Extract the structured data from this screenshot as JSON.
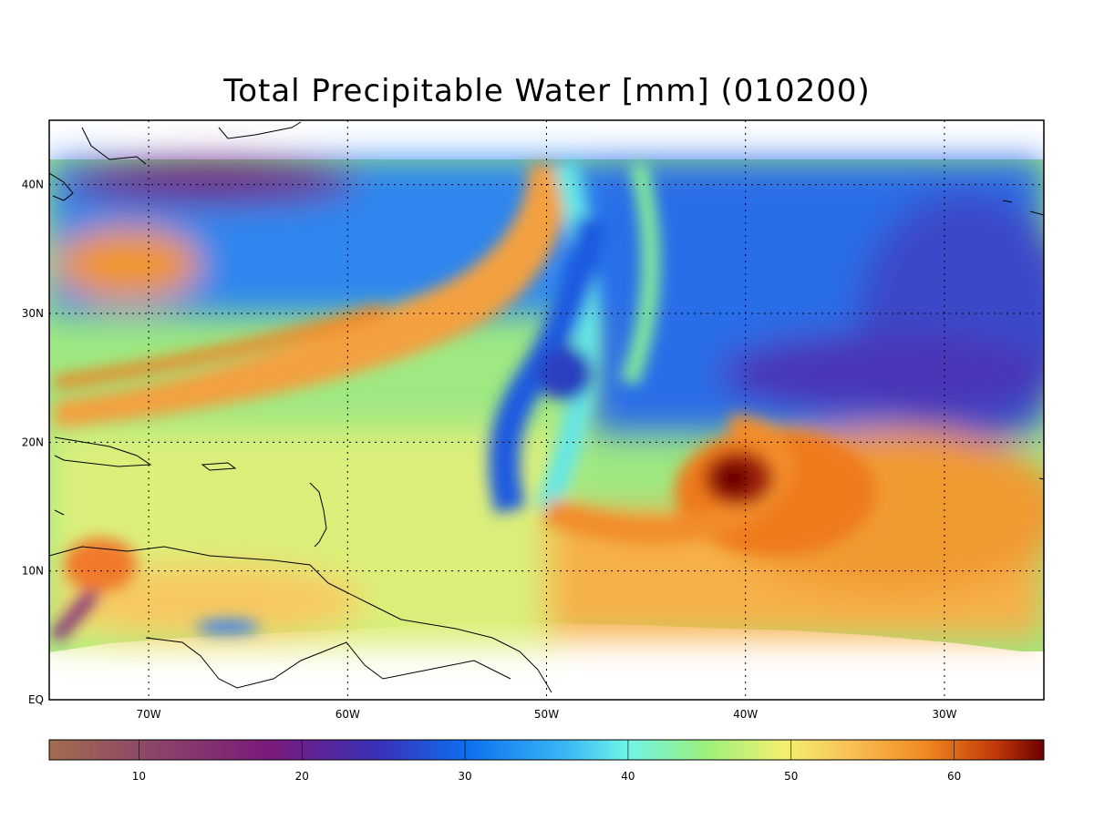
{
  "title": "Total Precipitable Water [mm]  (010200)",
  "map": {
    "lon_range": [
      -75,
      -25
    ],
    "lat_range": [
      0,
      45
    ],
    "lat_labels": [
      "EQ",
      "10N",
      "20N",
      "30N",
      "40N"
    ],
    "lon_labels": [
      "70W",
      "60W",
      "50W",
      "40W",
      "30W"
    ],
    "grid": true,
    "features": [
      "hurricane-vortex",
      "moisture-plume",
      "dry-intrusion",
      "caribbean-islands",
      "south-american-coast"
    ]
  },
  "colorbar": {
    "range": [
      4.5,
      65.5
    ],
    "ticks": [
      "10",
      "20",
      "30",
      "40",
      "50",
      "60"
    ],
    "colors": [
      "#a26d4c",
      "#7a206e",
      "#3b2fb0",
      "#0e7ee6",
      "#5ef3ef",
      "#8ef07a",
      "#f8e96a",
      "#f7a43a",
      "#ee7a12",
      "#6d0000"
    ]
  }
}
